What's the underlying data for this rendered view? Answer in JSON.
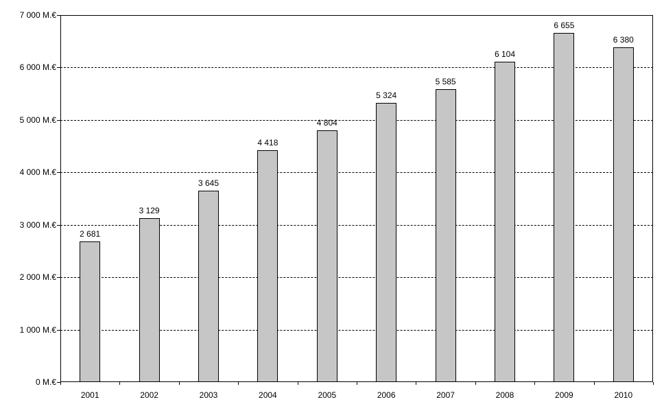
{
  "chart_data": {
    "type": "bar",
    "title": "",
    "categories": [
      "2001",
      "2002",
      "2003",
      "2004",
      "2005",
      "2006",
      "2007",
      "2008",
      "2009",
      "2010"
    ],
    "values": [
      2681,
      3129,
      3645,
      4418,
      4804,
      5324,
      5585,
      6104,
      6655,
      6380
    ],
    "value_labels": [
      "2 681",
      "3 129",
      "3 645",
      "4 418",
      "4 804",
      "5 324",
      "5 585",
      "6 104",
      "6 655",
      "6 380"
    ],
    "y_ticks": [
      0,
      1000,
      2000,
      3000,
      4000,
      5000,
      6000,
      7000
    ],
    "y_tick_labels": [
      "0 M.€",
      "1 000 M.€",
      "2 000 M.€",
      "3 000 M.€",
      "4 000 M.€",
      "5 000 M.€",
      "6 000 M.€",
      "7 000 M.€"
    ],
    "ylim": [
      0,
      7000
    ],
    "xlabel": "",
    "ylabel": "",
    "legend": "none",
    "grid": true,
    "grid_style": "dashed",
    "bar_color": "#c6c6c6",
    "bar_border_color": "#000000",
    "background_color": "#ffffff"
  }
}
